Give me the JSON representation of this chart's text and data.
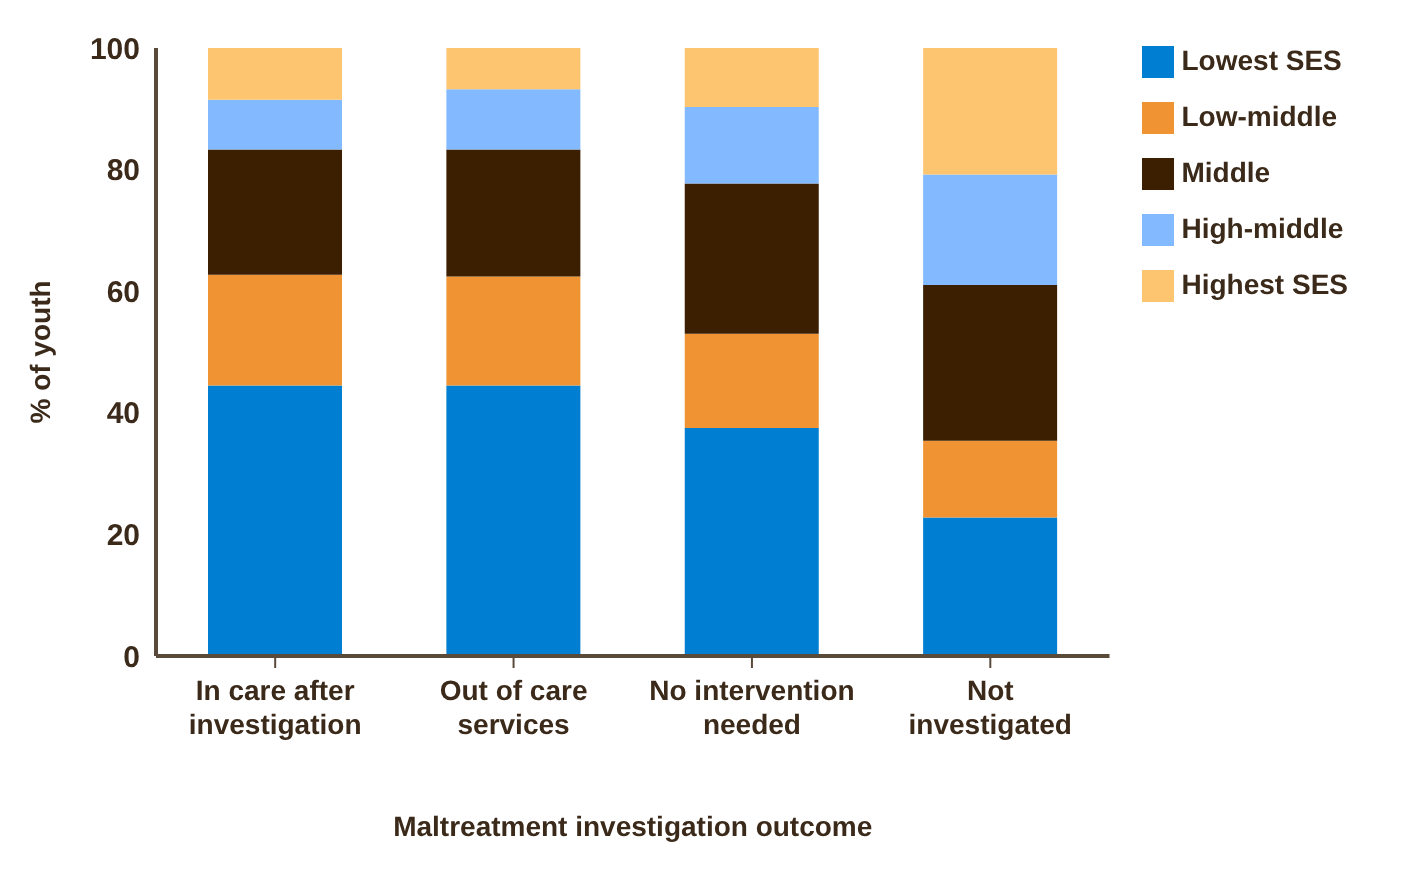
{
  "chart_data": {
    "type": "bar",
    "stacked": true,
    "xlabel": "Maltreatment investigation outcome",
    "ylabel": "% of youth",
    "categories": [
      "In care after investigation",
      "Out of care services",
      "No intervention needed",
      "Not investigated"
    ],
    "series": [
      {
        "name": "Lowest SES",
        "color": "#007ed1",
        "values": [
          44.5,
          44.5,
          37.5,
          22.8
        ]
      },
      {
        "name": "Low-middle",
        "color": "#ef9333",
        "values": [
          18.2,
          17.9,
          15.5,
          12.6
        ]
      },
      {
        "name": "Middle",
        "color": "#3c1e00",
        "values": [
          20.6,
          20.9,
          24.7,
          25.6
        ]
      },
      {
        "name": "High-middle",
        "color": "#83b9ff",
        "values": [
          8.2,
          9.9,
          12.6,
          18.2
        ]
      },
      {
        "name": "Highest SES",
        "color": "#fec570",
        "values": [
          8.5,
          6.8,
          9.7,
          20.8
        ]
      }
    ],
    "ylim": [
      0,
      100
    ],
    "yticks": [
      0,
      20,
      40,
      60,
      80,
      100
    ],
    "grid": false,
    "legend": "top right"
  }
}
